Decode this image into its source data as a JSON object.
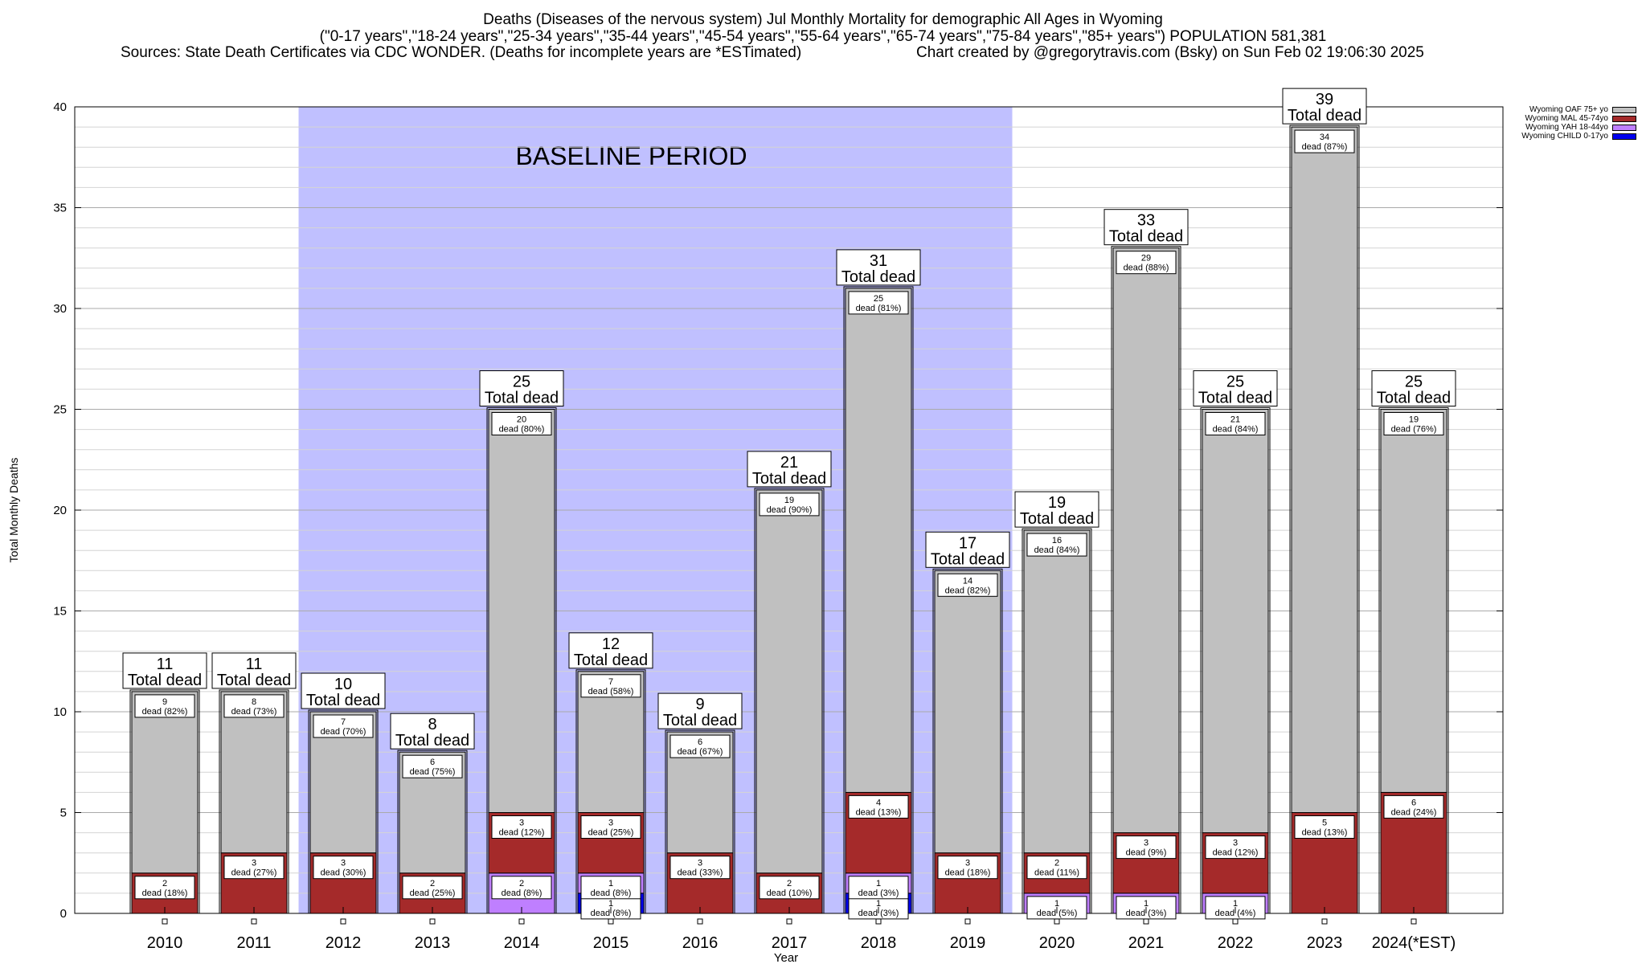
{
  "title": {
    "line1": "Deaths (Diseases of the nervous system) Jul Monthly Mortality for demographic All Ages in Wyoming",
    "line2": "(\"0-17 years\",\"18-24 years\",\"25-34 years\",\"35-44 years\",\"45-54 years\",\"55-64 years\",\"65-74 years\",\"75-84 years\",\"85+ years\") POPULATION 581,381",
    "line3_left": "Sources: State Death Certificates via CDC WONDER. (Deaths for incomplete years are *ESTimated)",
    "line3_right": "Chart created by @gregorytravis.com (Bsky) on Sun Feb 02 19:06:30 2025"
  },
  "chart_data": {
    "type": "bar",
    "stacked": true,
    "categories": [
      "2010",
      "2011",
      "2012",
      "2013",
      "2014",
      "2015",
      "2016",
      "2017",
      "2018",
      "2019",
      "2020",
      "2021",
      "2022",
      "2023",
      "2024(*EST)"
    ],
    "xlabel": "Year",
    "ylabel": "Total Monthly Deaths",
    "ylim": [
      0,
      40
    ],
    "yticks": [
      0,
      5,
      10,
      15,
      20,
      25,
      30,
      35,
      40
    ],
    "grid": true,
    "legend_position": "top-right",
    "baseline": {
      "label": "BASELINE PERIOD",
      "from": "2012",
      "to": "2019",
      "color": "#c0c0ff"
    },
    "total_label_suffix": "Total dead",
    "series": [
      {
        "name": "Wyoming CHILD 0-17yo",
        "color": "#0000ee",
        "values": [
          0,
          0,
          0,
          0,
          0,
          1,
          0,
          0,
          1,
          0,
          0,
          0,
          0,
          0,
          0
        ],
        "labels": [
          "",
          "",
          "",
          "",
          "",
          "1 dead (8%)",
          "",
          "",
          "1 dead (3%)",
          "",
          "",
          "",
          "",
          "",
          ""
        ]
      },
      {
        "name": "Wyoming YAH 18-44yo",
        "color": "#bf7fff",
        "values": [
          0,
          0,
          0,
          0,
          2,
          1,
          0,
          0,
          1,
          0,
          1,
          1,
          1,
          0,
          0
        ],
        "labels": [
          "",
          "",
          "",
          "",
          "2 dead (8%)",
          "1 dead (8%)",
          "",
          "",
          "1 dead (3%)",
          "",
          "1 dead (5%)",
          "1 dead (3%)",
          "1 dead (4%)",
          "",
          ""
        ]
      },
      {
        "name": "Wyoming MAL 45-74yo",
        "color": "#a52a2a",
        "values": [
          2,
          3,
          3,
          2,
          3,
          3,
          3,
          2,
          4,
          3,
          2,
          3,
          3,
          5,
          6
        ],
        "labels": [
          "2 dead (18%)",
          "3 dead (27%)",
          "3 dead (30%)",
          "2 dead (25%)",
          "3 dead (12%)",
          "3 dead (25%)",
          "3 dead (33%)",
          "2 dead (10%)",
          "4 dead (13%)",
          "3 dead (18%)",
          "2 dead (11%)",
          "3 dead (9%)",
          "3 dead (12%)",
          "5 dead (13%)",
          "6 dead (24%)"
        ]
      },
      {
        "name": "Wyoming OAF 75+ yo",
        "color": "#c0c0c0",
        "values": [
          9,
          8,
          7,
          6,
          20,
          7,
          6,
          19,
          25,
          14,
          16,
          29,
          21,
          34,
          19
        ],
        "labels": [
          "9 dead (82%)",
          "8 dead (73%)",
          "7 dead (70%)",
          "6 dead (75%)",
          "20 dead (80%)",
          "7 dead (58%)",
          "6 dead (67%)",
          "19 dead (90%)",
          "25 dead (81%)",
          "14 dead (82%)",
          "16 dead (84%)",
          "29 dead (88%)",
          "21 dead (84%)",
          "34 dead (87%)",
          "19 dead (76%)"
        ]
      }
    ],
    "totals": [
      11,
      11,
      10,
      8,
      25,
      12,
      9,
      21,
      31,
      17,
      19,
      33,
      25,
      39,
      25
    ]
  },
  "legend": {
    "items": [
      {
        "label": "Wyoming OAF 75+ yo",
        "color": "#c0c0c0"
      },
      {
        "label": "Wyoming MAL 45-74yo",
        "color": "#a52a2a"
      },
      {
        "label": "Wyoming YAH 18-44yo",
        "color": "#bf7fff"
      },
      {
        "label": "Wyoming CHILD 0-17yo",
        "color": "#0000ee"
      }
    ]
  }
}
